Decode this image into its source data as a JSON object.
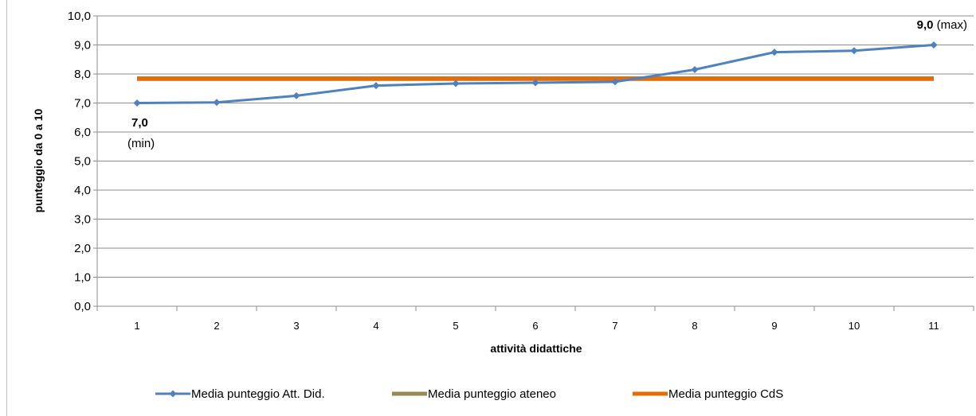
{
  "chart_data": {
    "type": "line",
    "x": [
      "1",
      "2",
      "3",
      "4",
      "5",
      "6",
      "7",
      "8",
      "9",
      "10",
      "11"
    ],
    "xlabel": "attività didattiche",
    "ylabel": "punteggio da 0 a 10",
    "ylim": [
      0,
      10
    ],
    "yticks": [
      "0,0",
      "1,0",
      "2,0",
      "3,0",
      "4,0",
      "5,0",
      "6,0",
      "7,0",
      "8,0",
      "9,0",
      "10,0"
    ],
    "grid": "horizontal",
    "legend_position": "bottom",
    "series": [
      {
        "name": "Media punteggio Att. Did.",
        "color": "#4f81bd",
        "marker": "diamond",
        "values": [
          7.0,
          7.02,
          7.25,
          7.6,
          7.67,
          7.7,
          7.73,
          8.15,
          8.75,
          8.8,
          9.0
        ]
      },
      {
        "name": "Media punteggio ateneo",
        "color": "#938953",
        "values": [
          7.85,
          7.85,
          7.85,
          7.85,
          7.85,
          7.85,
          7.85,
          7.85,
          7.85,
          7.85,
          7.85
        ]
      },
      {
        "name": "Media punteggio CdS",
        "color": "#e36c09",
        "values": [
          7.83,
          7.83,
          7.83,
          7.83,
          7.83,
          7.83,
          7.83,
          7.83,
          7.83,
          7.83,
          7.83
        ]
      }
    ],
    "annotations": [
      {
        "value": "7,0",
        "label": "(min)",
        "at_x": "1"
      },
      {
        "value": "9,0",
        "label": "(max)",
        "at_x": "11"
      }
    ]
  }
}
